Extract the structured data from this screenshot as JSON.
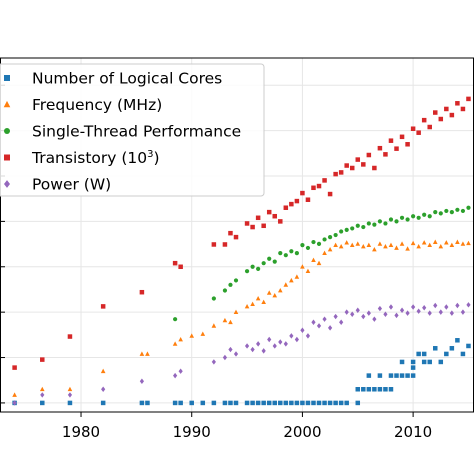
{
  "chart_data": {
    "type": "scatter",
    "title": "",
    "xlabel": "",
    "ylabel": "",
    "xlim": [
      1972.5,
      2015.5
    ],
    "ylim_log10": [
      -0.2,
      7.6
    ],
    "yscale": "log",
    "grid": true,
    "legend_position": "upper left",
    "xticks": [
      1980,
      1990,
      2000,
      2010
    ],
    "series": [
      {
        "name": "Number of Logical Cores",
        "color": "#1f77b4",
        "marker": "square",
        "points": [
          [
            1974,
            1
          ],
          [
            1976.5,
            1
          ],
          [
            1979,
            1
          ],
          [
            1982,
            1
          ],
          [
            1985.5,
            1
          ],
          [
            1986,
            1
          ],
          [
            1988.5,
            1
          ],
          [
            1989,
            1
          ],
          [
            1990,
            1
          ],
          [
            1991,
            1
          ],
          [
            1992,
            1
          ],
          [
            1993,
            1
          ],
          [
            1993.5,
            1
          ],
          [
            1994,
            1
          ],
          [
            1995,
            1
          ],
          [
            1995.5,
            1
          ],
          [
            1996,
            1
          ],
          [
            1996.5,
            1
          ],
          [
            1997,
            1
          ],
          [
            1997.5,
            1
          ],
          [
            1998,
            1
          ],
          [
            1998.5,
            1
          ],
          [
            1999,
            1
          ],
          [
            1999.5,
            1
          ],
          [
            2000,
            1
          ],
          [
            2000.5,
            1
          ],
          [
            2001,
            1
          ],
          [
            2001.5,
            1
          ],
          [
            2002,
            1
          ],
          [
            2002.5,
            1
          ],
          [
            2003,
            1
          ],
          [
            2003.5,
            1
          ],
          [
            2004,
            1
          ],
          [
            2005,
            1
          ],
          [
            2005,
            2
          ],
          [
            2005.5,
            2
          ],
          [
            2006,
            2
          ],
          [
            2006,
            4
          ],
          [
            2006.5,
            2
          ],
          [
            2007,
            2
          ],
          [
            2007,
            4
          ],
          [
            2007.5,
            2
          ],
          [
            2008,
            2
          ],
          [
            2008,
            4
          ],
          [
            2008.5,
            4
          ],
          [
            2009,
            4
          ],
          [
            2009,
            8
          ],
          [
            2009.5,
            4
          ],
          [
            2010,
            4
          ],
          [
            2010,
            6
          ],
          [
            2010,
            8
          ],
          [
            2010.5,
            12
          ],
          [
            2011,
            8
          ],
          [
            2011,
            12
          ],
          [
            2011.5,
            8
          ],
          [
            2012,
            16
          ],
          [
            2012.5,
            8
          ],
          [
            2013,
            12
          ],
          [
            2013.5,
            16
          ],
          [
            2014,
            24
          ],
          [
            2014.5,
            12
          ],
          [
            2015,
            18
          ]
        ]
      },
      {
        "name": "Frequency (MHz)",
        "color": "#ff7f0e",
        "marker": "triangle",
        "points": [
          [
            1974,
            1.5
          ],
          [
            1976.5,
            2
          ],
          [
            1979,
            2
          ],
          [
            1982,
            5
          ],
          [
            1985.5,
            12
          ],
          [
            1986,
            12
          ],
          [
            1988.5,
            20
          ],
          [
            1989,
            25
          ],
          [
            1990,
            30
          ],
          [
            1991,
            33
          ],
          [
            1992,
            50
          ],
          [
            1993,
            66
          ],
          [
            1993.5,
            60
          ],
          [
            1994,
            100
          ],
          [
            1995,
            133
          ],
          [
            1995.5,
            150
          ],
          [
            1996,
            200
          ],
          [
            1996.5,
            166
          ],
          [
            1997,
            266
          ],
          [
            1997.5,
            233
          ],
          [
            1998,
            300
          ],
          [
            1998.5,
            400
          ],
          [
            1999,
            500
          ],
          [
            1999.5,
            600
          ],
          [
            2000,
            1000
          ],
          [
            2000.5,
            800
          ],
          [
            2001,
            1400
          ],
          [
            2001.5,
            1200
          ],
          [
            2002,
            2000
          ],
          [
            2002.5,
            2400
          ],
          [
            2003,
            3000
          ],
          [
            2003.5,
            2800
          ],
          [
            2004,
            3400
          ],
          [
            2004.5,
            3000
          ],
          [
            2005,
            3200
          ],
          [
            2005.5,
            2800
          ],
          [
            2006,
            3000
          ],
          [
            2006.5,
            2400
          ],
          [
            2007,
            3200
          ],
          [
            2007.5,
            2800
          ],
          [
            2008,
            3000
          ],
          [
            2008.5,
            2600
          ],
          [
            2009,
            3200
          ],
          [
            2009.5,
            2500
          ],
          [
            2010,
            3300
          ],
          [
            2010.5,
            2800
          ],
          [
            2011,
            3400
          ],
          [
            2011.5,
            3000
          ],
          [
            2012,
            3500
          ],
          [
            2012.5,
            2800
          ],
          [
            2013,
            3400
          ],
          [
            2013.5,
            3000
          ],
          [
            2014,
            3500
          ],
          [
            2014.5,
            3200
          ],
          [
            2015,
            3300
          ]
        ]
      },
      {
        "name": "Single-Thread Performance",
        "color": "#2ca02c",
        "marker": "circle",
        "points": [
          [
            1988.5,
            70
          ],
          [
            1992,
            200
          ],
          [
            1993,
            300
          ],
          [
            1993.5,
            400
          ],
          [
            1994,
            500
          ],
          [
            1995,
            800
          ],
          [
            1995.5,
            1000
          ],
          [
            1996,
            900
          ],
          [
            1996.5,
            1200
          ],
          [
            1997,
            1500
          ],
          [
            1997.5,
            1300
          ],
          [
            1998,
            2000
          ],
          [
            1998.5,
            1800
          ],
          [
            1999,
            2200
          ],
          [
            1999.5,
            2000
          ],
          [
            2000,
            3000
          ],
          [
            2000.5,
            2600
          ],
          [
            2001,
            3500
          ],
          [
            2001.5,
            3200
          ],
          [
            2002,
            4000
          ],
          [
            2002.5,
            4500
          ],
          [
            2003,
            5000
          ],
          [
            2003.5,
            6000
          ],
          [
            2004,
            6500
          ],
          [
            2004.5,
            7000
          ],
          [
            2005,
            8000
          ],
          [
            2005.5,
            7500
          ],
          [
            2006,
            9000
          ],
          [
            2006.5,
            8500
          ],
          [
            2007,
            10000
          ],
          [
            2007.5,
            9000
          ],
          [
            2008,
            11000
          ],
          [
            2008.5,
            10000
          ],
          [
            2009,
            12000
          ],
          [
            2009.5,
            11000
          ],
          [
            2010,
            13000
          ],
          [
            2010.5,
            12000
          ],
          [
            2011,
            14000
          ],
          [
            2011.5,
            13000
          ],
          [
            2012,
            16000
          ],
          [
            2012.5,
            15000
          ],
          [
            2013,
            17000
          ],
          [
            2013.5,
            16000
          ],
          [
            2014,
            18000
          ],
          [
            2014.5,
            17000
          ],
          [
            2015,
            20000
          ]
        ]
      },
      {
        "name": "Transistory (10",
        "name_sup": "3",
        "name_suffix": ")",
        "color": "#d62728",
        "marker": "square",
        "points": [
          [
            1974,
            6
          ],
          [
            1976.5,
            9
          ],
          [
            1979,
            29
          ],
          [
            1982,
            134
          ],
          [
            1985.5,
            275
          ],
          [
            1988.5,
            1200
          ],
          [
            1989,
            1000
          ],
          [
            1992,
            3100
          ],
          [
            1993,
            3100
          ],
          [
            1993.5,
            5500
          ],
          [
            1994,
            4500
          ],
          [
            1995,
            9000
          ],
          [
            1995.5,
            7500
          ],
          [
            1996,
            12000
          ],
          [
            1996.5,
            8000
          ],
          [
            1997,
            16000
          ],
          [
            1997.5,
            13000
          ],
          [
            1998,
            10000
          ],
          [
            1998.5,
            20000
          ],
          [
            1999,
            24000
          ],
          [
            1999.5,
            28000
          ],
          [
            2000,
            42000
          ],
          [
            2000.5,
            30000
          ],
          [
            2001,
            55000
          ],
          [
            2001.5,
            60000
          ],
          [
            2002,
            80000
          ],
          [
            2002.5,
            40000
          ],
          [
            2003,
            110000
          ],
          [
            2003.5,
            120000
          ],
          [
            2004,
            170000
          ],
          [
            2004.5,
            150000
          ],
          [
            2005,
            230000
          ],
          [
            2005.5,
            180000
          ],
          [
            2006,
            290000
          ],
          [
            2006.5,
            150000
          ],
          [
            2007,
            410000
          ],
          [
            2007.5,
            300000
          ],
          [
            2008,
            600000
          ],
          [
            2008.5,
            400000
          ],
          [
            2009,
            730000
          ],
          [
            2009.5,
            500000
          ],
          [
            2010,
            1100000
          ],
          [
            2010.5,
            900000
          ],
          [
            2011,
            1700000
          ],
          [
            2011.5,
            1200000
          ],
          [
            2012,
            2500000
          ],
          [
            2012.5,
            1800000
          ],
          [
            2013,
            3000000
          ],
          [
            2013.5,
            2200000
          ],
          [
            2014,
            4000000
          ],
          [
            2014.5,
            3000000
          ],
          [
            2015,
            5000000
          ]
        ]
      },
      {
        "name": "Power (W)",
        "color": "#9467bd",
        "marker": "diamond",
        "points": [
          [
            1974,
            1
          ],
          [
            1976.5,
            1.5
          ],
          [
            1979,
            1.5
          ],
          [
            1982,
            2
          ],
          [
            1985.5,
            3
          ],
          [
            1988.5,
            4
          ],
          [
            1989,
            5
          ],
          [
            1992,
            8
          ],
          [
            1993,
            10
          ],
          [
            1993.5,
            15
          ],
          [
            1994,
            12
          ],
          [
            1995,
            18
          ],
          [
            1995.5,
            15
          ],
          [
            1996,
            20
          ],
          [
            1996.5,
            14
          ],
          [
            1997,
            25
          ],
          [
            1997.5,
            18
          ],
          [
            1998,
            22
          ],
          [
            1998.5,
            20
          ],
          [
            1999,
            30
          ],
          [
            1999.5,
            25
          ],
          [
            2000,
            40
          ],
          [
            2000.5,
            30
          ],
          [
            2001,
            60
          ],
          [
            2001.5,
            50
          ],
          [
            2002,
            70
          ],
          [
            2002.5,
            45
          ],
          [
            2003,
            80
          ],
          [
            2003.5,
            60
          ],
          [
            2004,
            100
          ],
          [
            2004.5,
            90
          ],
          [
            2005,
            110
          ],
          [
            2005.5,
            80
          ],
          [
            2006,
            95
          ],
          [
            2006.5,
            70
          ],
          [
            2007,
            120
          ],
          [
            2007.5,
            90
          ],
          [
            2008,
            130
          ],
          [
            2008.5,
            85
          ],
          [
            2009,
            110
          ],
          [
            2009.5,
            95
          ],
          [
            2010,
            130
          ],
          [
            2010.5,
            105
          ],
          [
            2011,
            125
          ],
          [
            2011.5,
            95
          ],
          [
            2012,
            140
          ],
          [
            2012.5,
            100
          ],
          [
            2013,
            130
          ],
          [
            2013.5,
            95
          ],
          [
            2014,
            140
          ],
          [
            2014.5,
            100
          ],
          [
            2015,
            145
          ]
        ]
      }
    ]
  }
}
